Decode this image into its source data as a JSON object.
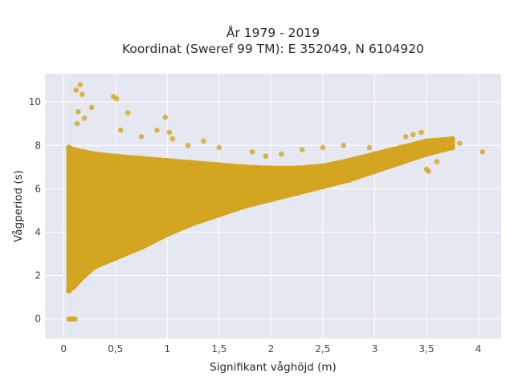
{
  "chart_data": {
    "type": "scatter",
    "title": "År 1979 - 2019",
    "subtitle": "Koordinat (Sweref 99 TM): E 352049, N 6104920",
    "xlabel": "Signifikant våghöjd (m)",
    "ylabel": "Vågperiod (s)",
    "xlim": [
      -0.18,
      4.22
    ],
    "ylim": [
      -0.9,
      11.3
    ],
    "x_ticks": [
      0,
      0.5,
      1,
      1.5,
      2,
      2.5,
      3,
      3.5,
      4
    ],
    "x_tick_labels": [
      "0",
      "0,5",
      "1",
      "1,5",
      "2",
      "2,5",
      "3",
      "3,5",
      "4"
    ],
    "y_ticks": [
      0,
      2,
      4,
      6,
      8,
      10
    ],
    "y_tick_labels": [
      "0",
      "2",
      "4",
      "6",
      "8",
      "10"
    ],
    "grid": true,
    "background": "#e5e8f0",
    "marker_color": "#d4a520",
    "dense_band": {
      "x": [
        0.05,
        0.1,
        0.2,
        0.3,
        0.5,
        0.75,
        1.0,
        1.25,
        1.5,
        1.75,
        2.0,
        2.25,
        2.5,
        2.75,
        3.0,
        3.25,
        3.5,
        3.75
      ],
      "y_low": [
        1.3,
        1.5,
        2.0,
        2.4,
        2.8,
        3.3,
        3.9,
        4.4,
        4.8,
        5.2,
        5.5,
        5.8,
        6.1,
        6.4,
        6.8,
        7.2,
        7.6,
        7.9
      ],
      "y_high": [
        7.9,
        7.8,
        7.7,
        7.6,
        7.5,
        7.4,
        7.3,
        7.2,
        7.1,
        7.0,
        6.95,
        6.95,
        7.05,
        7.3,
        7.6,
        7.9,
        8.2,
        8.3
      ]
    },
    "outliers": [
      {
        "x": 0.16,
        "y": 10.8
      },
      {
        "x": 0.12,
        "y": 10.55
      },
      {
        "x": 0.18,
        "y": 10.35
      },
      {
        "x": 0.14,
        "y": 9.55
      },
      {
        "x": 0.2,
        "y": 9.25
      },
      {
        "x": 0.27,
        "y": 9.75
      },
      {
        "x": 0.48,
        "y": 10.25
      },
      {
        "x": 0.51,
        "y": 10.15
      },
      {
        "x": 0.13,
        "y": 9.0
      },
      {
        "x": 0.62,
        "y": 9.5
      },
      {
        "x": 0.98,
        "y": 9.3
      },
      {
        "x": 0.55,
        "y": 8.7
      },
      {
        "x": 0.75,
        "y": 8.4
      },
      {
        "x": 0.9,
        "y": 8.7
      },
      {
        "x": 1.02,
        "y": 8.6
      },
      {
        "x": 1.05,
        "y": 8.3
      },
      {
        "x": 1.2,
        "y": 8.0
      },
      {
        "x": 1.35,
        "y": 8.2
      },
      {
        "x": 1.5,
        "y": 7.9
      },
      {
        "x": 1.82,
        "y": 7.7
      },
      {
        "x": 1.95,
        "y": 7.5
      },
      {
        "x": 2.1,
        "y": 7.6
      },
      {
        "x": 2.3,
        "y": 7.8
      },
      {
        "x": 2.5,
        "y": 7.9
      },
      {
        "x": 2.7,
        "y": 8.0
      },
      {
        "x": 2.95,
        "y": 7.9
      },
      {
        "x": 3.3,
        "y": 8.4
      },
      {
        "x": 3.37,
        "y": 8.5
      },
      {
        "x": 3.45,
        "y": 8.6
      },
      {
        "x": 3.65,
        "y": 8.1
      },
      {
        "x": 3.7,
        "y": 8.15
      },
      {
        "x": 3.75,
        "y": 8.15
      },
      {
        "x": 3.82,
        "y": 8.1
      },
      {
        "x": 4.04,
        "y": 7.7
      },
      {
        "x": 3.6,
        "y": 7.25
      },
      {
        "x": 3.5,
        "y": 6.9
      },
      {
        "x": 3.52,
        "y": 6.8
      },
      {
        "x": 3.12,
        "y": 7.0
      },
      {
        "x": 2.98,
        "y": 6.8
      },
      {
        "x": 2.55,
        "y": 6.5
      },
      {
        "x": 2.3,
        "y": 6.0
      },
      {
        "x": 0.05,
        "y": 0.0
      },
      {
        "x": 0.07,
        "y": 0.0
      },
      {
        "x": 0.09,
        "y": 0.0
      },
      {
        "x": 0.11,
        "y": 0.0
      }
    ]
  }
}
